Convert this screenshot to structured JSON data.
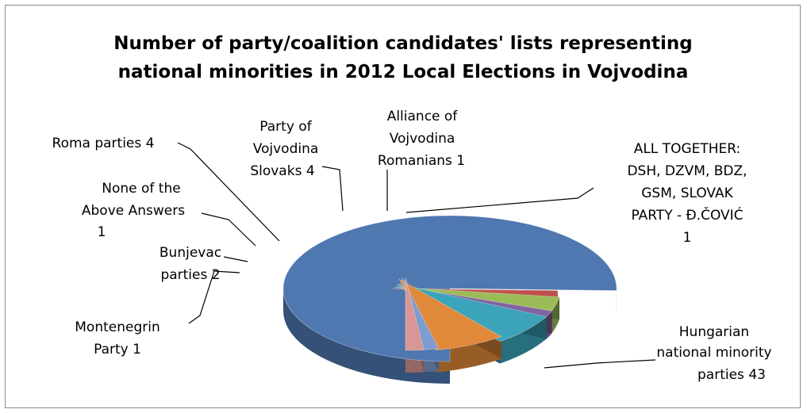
{
  "chart_data": {
    "type": "pie",
    "style": "3d-exploded",
    "title": "Number of party/coalition candidates' lists representing national minorities in 2012 Local Elections in Vojvodina",
    "title_lines": [
      "Number of party/coalition candidates' lists representing",
      "national minorities in 2012 Local Elections in Vojvodina"
    ],
    "legend": "none",
    "slices": [
      {
        "key": "hungarian",
        "value": 43,
        "color": "#4F77B0",
        "label_lines": [
          "Hungarian",
          "national minority",
          "parties 43"
        ]
      },
      {
        "key": "montenegrin",
        "value": 1,
        "color": "#C0504D",
        "label_lines": [
          "Montenegrin",
          "Party 1"
        ]
      },
      {
        "key": "bunjevac",
        "value": 2,
        "color": "#9BBB59",
        "label_lines": [
          "Bunjevac",
          "parties 2"
        ]
      },
      {
        "key": "none",
        "value": 1,
        "color": "#8064A2",
        "label_lines": [
          "None of the",
          "Above Answers",
          "1"
        ]
      },
      {
        "key": "roma",
        "value": 4,
        "color": "#3BA3BA",
        "label_lines": [
          "Roma parties 4"
        ]
      },
      {
        "key": "slovaks",
        "value": 4,
        "color": "#E0893A",
        "label_lines": [
          "Party of",
          "Vojvodina",
          "Slovaks  4"
        ]
      },
      {
        "key": "romanians",
        "value": 1,
        "color": "#7F9CCF",
        "label_lines": [
          "Alliance of",
          "Vojvodina",
          "Romanians  1"
        ]
      },
      {
        "key": "together",
        "value": 1,
        "color": "#D99694",
        "label_lines": [
          "ALL TOGETHER:",
          "DSH, DZVM, BDZ,",
          "GSM, SLOVAK",
          "PARTY - Đ.ČOVIĆ",
          "1"
        ]
      }
    ]
  }
}
